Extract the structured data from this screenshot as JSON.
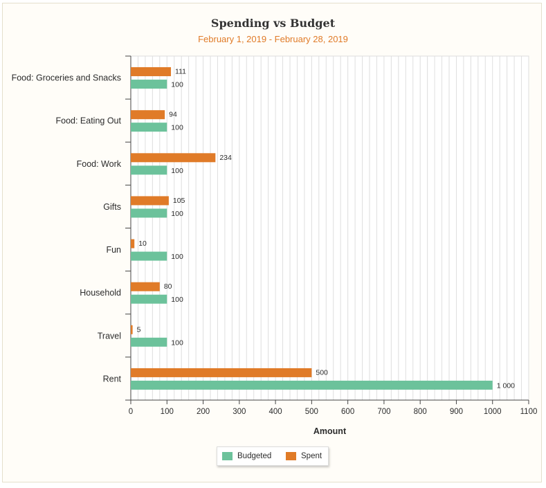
{
  "colors": {
    "budgeted": "#6cc29b",
    "spent": "#e07b28",
    "subtitle": "#e07b28"
  },
  "chart_data": {
    "type": "bar",
    "orientation": "horizontal",
    "title": "Spending vs Budget",
    "subtitle": "February 1, 2019 - February 28, 2019",
    "xlabel": "Amount",
    "ylabel": "",
    "categories": [
      "Food: Groceries and Snacks",
      "Food: Eating Out",
      "Food: Work",
      "Gifts",
      "Fun",
      "Household",
      "Travel",
      "Rent"
    ],
    "series": [
      {
        "name": "Spent",
        "values": [
          111,
          94,
          234,
          105,
          10,
          80,
          5,
          500
        ],
        "labels": [
          "111",
          "94",
          "234",
          "105",
          "10",
          "80",
          "5",
          "500"
        ]
      },
      {
        "name": "Budgeted",
        "values": [
          100,
          100,
          100,
          100,
          100,
          100,
          100,
          1000
        ],
        "labels": [
          "100",
          "100",
          "100",
          "100",
          "100",
          "100",
          "100",
          "1 000"
        ]
      }
    ],
    "xlim": [
      0,
      1100
    ],
    "xticks": [
      "0",
      "100",
      "200",
      "300",
      "400",
      "500",
      "600",
      "700",
      "800",
      "900",
      "1000",
      "1100"
    ],
    "grid": true,
    "legend": {
      "placement": "bottom-center",
      "items": [
        "Budgeted",
        "Spent"
      ]
    }
  }
}
